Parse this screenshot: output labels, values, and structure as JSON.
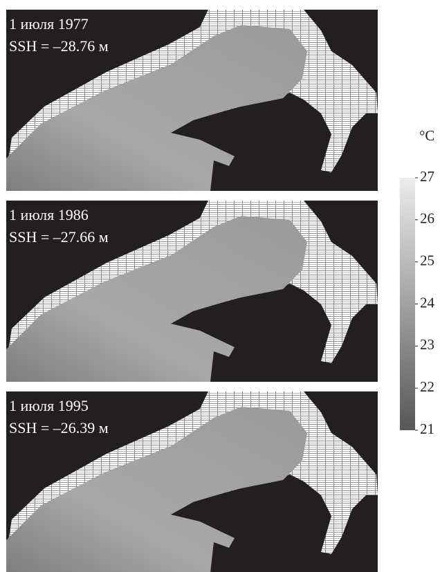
{
  "panels": [
    {
      "date": "1 июля 1977",
      "ssh": "SSH = –28.76 м"
    },
    {
      "date": "1 июля 1986",
      "ssh": "SSH = –27.66 м"
    },
    {
      "date": "1 июля 1995",
      "ssh": "SSH = –26.39 м"
    }
  ],
  "colorbar": {
    "unit": "°C",
    "lim": [
      21,
      27
    ],
    "ticks": [
      21,
      22,
      23,
      24,
      25,
      26,
      27
    ]
  }
}
